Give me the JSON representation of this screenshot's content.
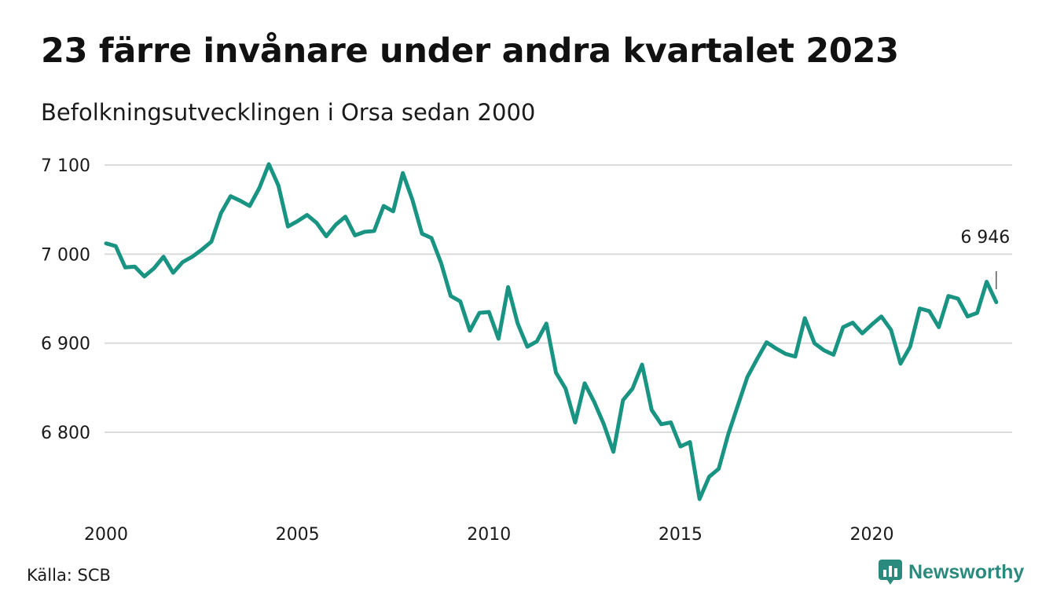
{
  "header": {
    "title": "23 färre invånare under andra kvartalet 2023",
    "subtitle": "Befolkningsutvecklingen i Orsa sedan 2000"
  },
  "footer": {
    "source": "Källa: SCB",
    "brand": "Newsworthy",
    "brand_icon": "newsworthy-logo-icon"
  },
  "colors": {
    "line": "#1a9482",
    "grid": "#dcdcdc",
    "brand": "#2a8a7e"
  },
  "chart_data": {
    "type": "line",
    "title": "23 färre invånare under andra kvartalet 2023",
    "subtitle": "Befolkningsutvecklingen i Orsa sedan 2000",
    "xlabel": "",
    "ylabel": "",
    "x_start": 2000.0,
    "x_step": 0.25,
    "xlim": [
      2000.0,
      2023.5
    ],
    "ylim": [
      6720,
      7110
    ],
    "yticks": [
      6800,
      6900,
      7000,
      7100
    ],
    "ytick_labels": [
      "6 800",
      "6 900",
      "7 000",
      "7 100"
    ],
    "xticks": [
      2000,
      2005,
      2010,
      2015,
      2020
    ],
    "xtick_labels": [
      "2000",
      "2005",
      "2010",
      "2015",
      "2020"
    ],
    "grid": "horizontal",
    "end_label": "6 946",
    "series": [
      {
        "values": [
          7012,
          7009,
          6985,
          6986,
          6975,
          6984,
          6997,
          6979,
          6991,
          6997,
          7005,
          7014,
          7046,
          7065,
          7060,
          7054,
          7074,
          7101,
          7077,
          7031,
          7037,
          7044,
          7035,
          7020,
          7033,
          7042,
          7021,
          7025,
          7026,
          7054,
          7048,
          7091,
          7061,
          7023,
          7018,
          6990,
          6953,
          6947,
          6914,
          6934,
          6935,
          6905,
          6963,
          6922,
          6896,
          6902,
          6922,
          6867,
          6849,
          6811,
          6855,
          6834,
          6809,
          6778,
          6836,
          6849,
          6876,
          6825,
          6809,
          6811,
          6784,
          6789,
          6725,
          6750,
          6759,
          6798,
          6830,
          6862,
          6882,
          6901,
          6894,
          6888,
          6885,
          6928,
          6900,
          6892,
          6887,
          6918,
          6923,
          6911,
          6921,
          6930,
          6915,
          6877,
          6896,
          6939,
          6936,
          6918,
          6953,
          6950,
          6930,
          6934,
          6969,
          6946
        ]
      }
    ]
  }
}
